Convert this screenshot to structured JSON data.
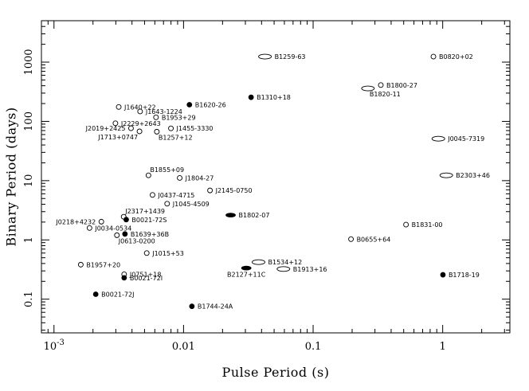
{
  "chart_data": {
    "type": "scatter",
    "title": "",
    "xlabel": "Pulse Period (s)",
    "ylabel": "Binary Period (days)",
    "xscale": "log",
    "yscale": "log",
    "xlim": [
      0.0008,
      3.3
    ],
    "ylim": [
      0.027,
      5000
    ],
    "x_ticks": [
      {
        "value": 0.001,
        "base": "10",
        "exp": "-3"
      },
      {
        "value": 0.01,
        "label": "0.01"
      },
      {
        "value": 0.1,
        "label": "0.1"
      },
      {
        "value": 1,
        "label": "1"
      }
    ],
    "y_ticks": [
      {
        "value": 0.1,
        "label": "0.1"
      },
      {
        "value": 1,
        "label": "1"
      },
      {
        "value": 10,
        "label": "10"
      },
      {
        "value": 100,
        "label": "100"
      },
      {
        "value": 1000,
        "label": "1000"
      }
    ],
    "marker_types": [
      "open-circle",
      "filled-circle",
      "open-ellipse",
      "filled-ellipse"
    ],
    "points": [
      {
        "name": "B1259-63",
        "x": 0.0425,
        "y": 1240,
        "marker": "open-ellipse",
        "label_side": "right"
      },
      {
        "name": "B0820+02",
        "x": 0.848,
        "y": 1240,
        "marker": "open-circle",
        "label_side": "right"
      },
      {
        "name": "B1800-27",
        "x": 0.333,
        "y": 410,
        "marker": "open-circle",
        "label_side": "right"
      },
      {
        "name": "B1820-11",
        "x": 0.265,
        "y": 360,
        "marker": "open-ellipse",
        "label_side": "below-right"
      },
      {
        "name": "B1310+18",
        "x": 0.0332,
        "y": 255,
        "marker": "filled-circle",
        "label_side": "right"
      },
      {
        "name": "B1620-26",
        "x": 0.0111,
        "y": 191,
        "marker": "filled-circle",
        "label_side": "right"
      },
      {
        "name": "J1640+22",
        "x": 0.00316,
        "y": 175,
        "marker": "open-circle",
        "label_side": "right"
      },
      {
        "name": "J1643-1224",
        "x": 0.00462,
        "y": 147,
        "marker": "open-circle",
        "label_side": "right"
      },
      {
        "name": "B1953+29",
        "x": 0.00613,
        "y": 117,
        "marker": "open-circle",
        "label_side": "right"
      },
      {
        "name": "J2229+2643",
        "x": 0.00298,
        "y": 93,
        "marker": "open-circle",
        "label_side": "right"
      },
      {
        "name": "J2019+2425",
        "x": 0.00393,
        "y": 76.5,
        "marker": "open-circle",
        "label_side": "left"
      },
      {
        "name": "J1455-3330",
        "x": 0.00799,
        "y": 76.2,
        "marker": "open-circle",
        "label_side": "right"
      },
      {
        "name": "J1713+0747",
        "x": 0.00457,
        "y": 67.8,
        "marker": "open-circle",
        "label_side": "below-left"
      },
      {
        "name": "B1257+12",
        "x": 0.00622,
        "y": 67,
        "marker": "open-circle",
        "label_side": "below-right"
      },
      {
        "name": "J0045-7319",
        "x": 0.926,
        "y": 51,
        "marker": "open-ellipse",
        "label_side": "right"
      },
      {
        "name": "B1855+09",
        "x": 0.00536,
        "y": 12.3,
        "marker": "open-circle",
        "label_side": "above-right"
      },
      {
        "name": "B2303+46",
        "x": 1.066,
        "y": 12.3,
        "marker": "open-ellipse",
        "label_side": "right"
      },
      {
        "name": "J1804-27",
        "x": 0.00934,
        "y": 11.1,
        "marker": "open-circle",
        "label_side": "right"
      },
      {
        "name": "J2145-0750",
        "x": 0.016,
        "y": 6.84,
        "marker": "open-circle",
        "label_side": "right"
      },
      {
        "name": "J0437-4715",
        "x": 0.00576,
        "y": 5.74,
        "marker": "open-circle",
        "label_side": "right"
      },
      {
        "name": "J1045-4509",
        "x": 0.00747,
        "y": 4.08,
        "marker": "open-circle",
        "label_side": "right"
      },
      {
        "name": "B1802-07",
        "x": 0.0231,
        "y": 2.62,
        "marker": "filled-ellipse",
        "label_side": "right"
      },
      {
        "name": "J2317+1439",
        "x": 0.00345,
        "y": 2.46,
        "marker": "open-circle",
        "label_side": "above-right"
      },
      {
        "name": "J0218+4232",
        "x": 0.00232,
        "y": 2.03,
        "marker": "open-circle",
        "label_side": "left"
      },
      {
        "name": "B0021-72S",
        "x": 0.00361,
        "y": 2.2,
        "marker": "filled-circle",
        "label_side": "right"
      },
      {
        "name": "B1831-00",
        "x": 0.521,
        "y": 1.81,
        "marker": "open-circle",
        "label_side": "right"
      },
      {
        "name": "J0034-0534",
        "x": 0.00188,
        "y": 1.59,
        "marker": "open-circle",
        "label_side": "right"
      },
      {
        "name": "B1639+36B",
        "x": 0.00353,
        "y": 1.26,
        "marker": "filled-circle",
        "label_side": "right"
      },
      {
        "name": "J0613-0200",
        "x": 0.00306,
        "y": 1.2,
        "marker": "open-circle",
        "label_side": "below-right"
      },
      {
        "name": "B0655+64",
        "x": 0.196,
        "y": 1.03,
        "marker": "open-circle",
        "label_side": "right"
      },
      {
        "name": "J1015+53",
        "x": 0.0052,
        "y": 0.6,
        "marker": "open-circle",
        "label_side": "right"
      },
      {
        "name": "B1957+20",
        "x": 0.00161,
        "y": 0.382,
        "marker": "open-circle",
        "label_side": "right"
      },
      {
        "name": "B1534+12",
        "x": 0.0379,
        "y": 0.421,
        "marker": "open-ellipse",
        "label_side": "right"
      },
      {
        "name": "B1913+16",
        "x": 0.059,
        "y": 0.323,
        "marker": "open-ellipse",
        "label_side": "right"
      },
      {
        "name": "B2127+11C",
        "x": 0.0305,
        "y": 0.335,
        "marker": "filled-ellipse",
        "label_side": "below"
      },
      {
        "name": "J0751+18",
        "x": 0.00348,
        "y": 0.263,
        "marker": "open-circle",
        "label_side": "right"
      },
      {
        "name": "B0021-72I",
        "x": 0.00348,
        "y": 0.229,
        "marker": "filled-circle",
        "label_side": "right"
      },
      {
        "name": "B1718-19",
        "x": 1.004,
        "y": 0.258,
        "marker": "filled-circle",
        "label_side": "right"
      },
      {
        "name": "B0021-72J",
        "x": 0.0021,
        "y": 0.121,
        "marker": "filled-circle",
        "label_side": "right"
      },
      {
        "name": "B1744-24A",
        "x": 0.0116,
        "y": 0.0757,
        "marker": "filled-circle",
        "label_side": "right"
      }
    ]
  }
}
